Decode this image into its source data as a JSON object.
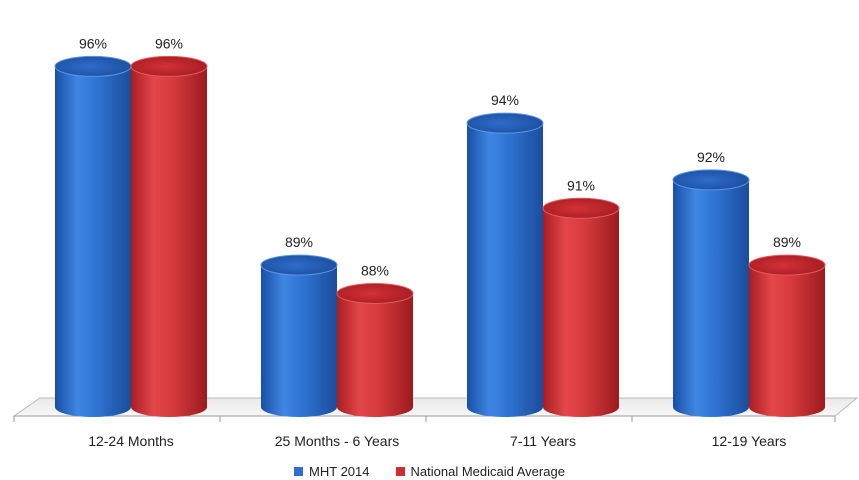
{
  "chart_data": {
    "type": "bar",
    "style": "3d-cylinder",
    "title": "",
    "xlabel": "",
    "ylabel": "",
    "ylim": [
      84,
      97
    ],
    "grid": false,
    "legend_position": "bottom",
    "categories": [
      "12-24 Months",
      "25 Months - 6 Years",
      "7-11 Years",
      "12-19 Years"
    ],
    "series": [
      {
        "name": "MHT 2014",
        "values": [
          96,
          89,
          94,
          92
        ],
        "labels": [
          "96%",
          "89%",
          "94%",
          "92%"
        ],
        "color": "#2e6fce"
      },
      {
        "name": "National Medicaid Average",
        "values": [
          96,
          88,
          91,
          89
        ],
        "labels": [
          "96%",
          "88%",
          "91%",
          "89%"
        ],
        "color": "#cf2f33"
      }
    ]
  }
}
